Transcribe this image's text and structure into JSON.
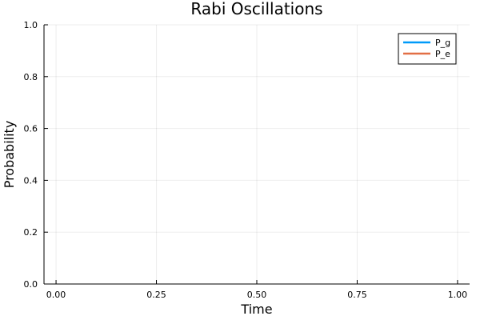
{
  "chart_data": {
    "type": "line",
    "title": "Rabi Oscillations",
    "xlabel": "Time",
    "ylabel": "Probability",
    "xlim": [
      -0.03,
      1.03
    ],
    "ylim": [
      0,
      1
    ],
    "x_ticks": [
      0,
      0.25,
      0.5,
      0.75,
      1
    ],
    "x_tick_labels": [
      "0.00",
      "0.25",
      "0.50",
      "0.75",
      "1.00"
    ],
    "y_ticks": [
      0,
      0.2,
      0.4,
      0.6,
      0.8,
      1
    ],
    "y_tick_labels": [
      "0.0",
      "0.2",
      "0.4",
      "0.6",
      "0.8",
      "1.0"
    ],
    "grid": true,
    "legend_position": "top-right",
    "series": [
      {
        "name": "P_g",
        "color": "#009af9",
        "x": [],
        "y": []
      },
      {
        "name": "P_e",
        "color": "#e26f46",
        "x": [],
        "y": []
      }
    ]
  }
}
